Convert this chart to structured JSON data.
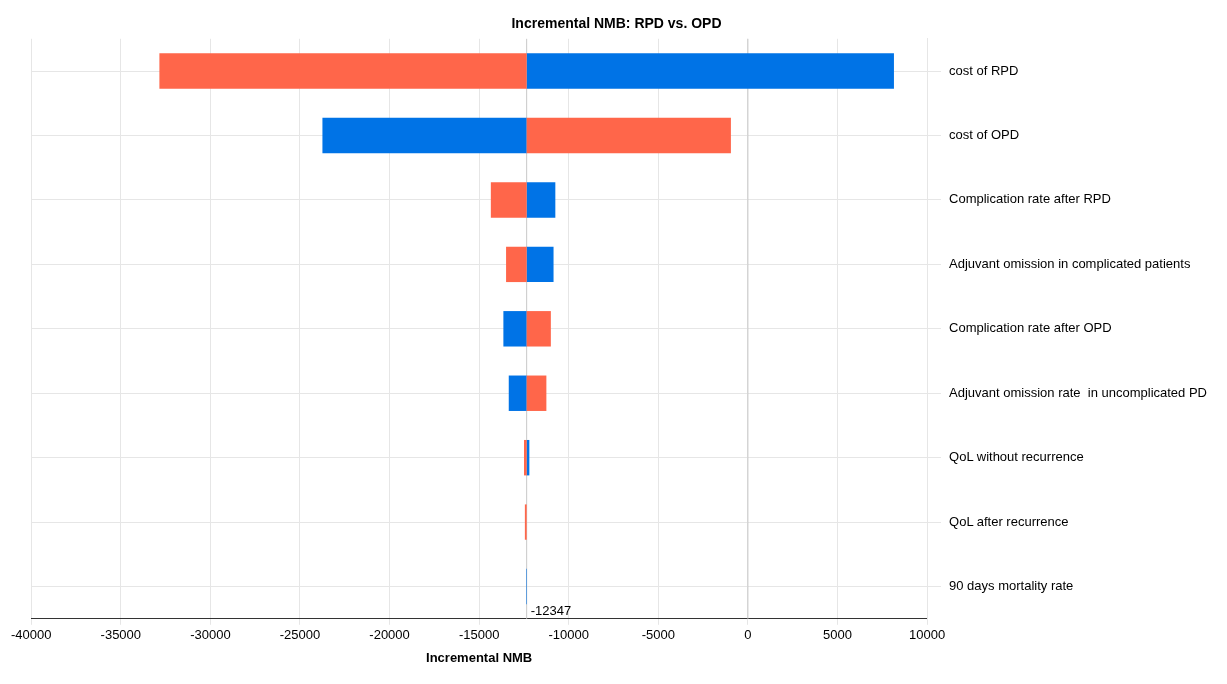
{
  "chart_data": {
    "type": "bar",
    "orientation": "horizontal",
    "title": "Incremental NMB: RPD vs. OPD",
    "xlabel": "Incremental NMB",
    "categories": [
      "cost of RPD",
      "cost of OPD",
      "Complication rate after RPD",
      "Adjuvant omission in complicated patients",
      "Complication rate after OPD",
      "Adjuvant omission rate  in uncomplicated PD",
      "QoL without recurrence",
      "QoL after recurrence",
      "90 days mortality rate"
    ],
    "series": [
      {
        "color": "#ff664a",
        "base": [
          -12347,
          -12347,
          -12347,
          -12347,
          -12347,
          -12347,
          -12347,
          -12347,
          null
        ],
        "values": [
          -20500,
          11400,
          -2000,
          -1150,
          1350,
          1100,
          -150,
          -100,
          null
        ]
      },
      {
        "color": "#0073e6",
        "base": [
          -12347,
          -12347,
          -12347,
          -12347,
          -12347,
          -12347,
          -12347,
          null,
          -12347
        ],
        "values": [
          20500,
          -11400,
          1600,
          1500,
          -1300,
          -1000,
          150,
          null,
          -30
        ]
      }
    ],
    "xlim": [
      -40000,
      10000
    ],
    "xticks": [
      -40000,
      -35000,
      -30000,
      -25000,
      -20000,
      -15000,
      -10000,
      -5000,
      0,
      5000,
      10000
    ],
    "ref_lines": [
      {
        "axis": "x",
        "value": -12347,
        "label": "-12347",
        "color": "#c8c8c8"
      },
      {
        "axis": "x",
        "value": 0,
        "label": null,
        "color": "#c8c8c8"
      }
    ],
    "grid": true,
    "legend": false
  }
}
